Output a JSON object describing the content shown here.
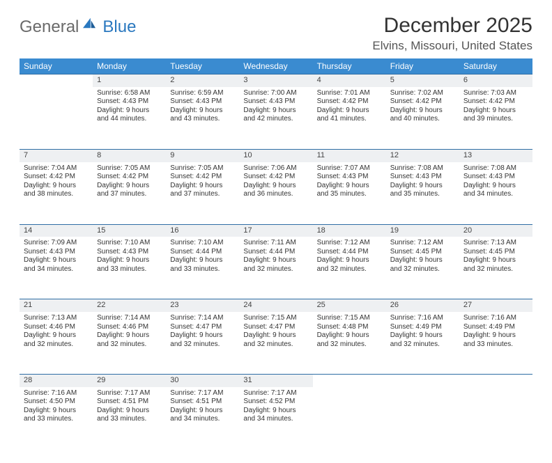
{
  "brand": {
    "general": "General",
    "blue": "Blue"
  },
  "title": "December 2025",
  "location": "Elvins, Missouri, United States",
  "colors": {
    "header_bg": "#3a8bd0",
    "header_text": "#ffffff",
    "daynum_bg": "#eef0f2",
    "rule": "#2e6da4",
    "text": "#333333",
    "brand_gray": "#6a6a6a",
    "brand_blue": "#2a78bf"
  },
  "weekdays": [
    "Sunday",
    "Monday",
    "Tuesday",
    "Wednesday",
    "Thursday",
    "Friday",
    "Saturday"
  ],
  "weeks": [
    {
      "nums": [
        "",
        "1",
        "2",
        "3",
        "4",
        "5",
        "6"
      ],
      "cells": [
        null,
        {
          "sunrise": "Sunrise: 6:58 AM",
          "sunset": "Sunset: 4:43 PM",
          "d1": "Daylight: 9 hours",
          "d2": "and 44 minutes."
        },
        {
          "sunrise": "Sunrise: 6:59 AM",
          "sunset": "Sunset: 4:43 PM",
          "d1": "Daylight: 9 hours",
          "d2": "and 43 minutes."
        },
        {
          "sunrise": "Sunrise: 7:00 AM",
          "sunset": "Sunset: 4:43 PM",
          "d1": "Daylight: 9 hours",
          "d2": "and 42 minutes."
        },
        {
          "sunrise": "Sunrise: 7:01 AM",
          "sunset": "Sunset: 4:42 PM",
          "d1": "Daylight: 9 hours",
          "d2": "and 41 minutes."
        },
        {
          "sunrise": "Sunrise: 7:02 AM",
          "sunset": "Sunset: 4:42 PM",
          "d1": "Daylight: 9 hours",
          "d2": "and 40 minutes."
        },
        {
          "sunrise": "Sunrise: 7:03 AM",
          "sunset": "Sunset: 4:42 PM",
          "d1": "Daylight: 9 hours",
          "d2": "and 39 minutes."
        }
      ]
    },
    {
      "nums": [
        "7",
        "8",
        "9",
        "10",
        "11",
        "12",
        "13"
      ],
      "cells": [
        {
          "sunrise": "Sunrise: 7:04 AM",
          "sunset": "Sunset: 4:42 PM",
          "d1": "Daylight: 9 hours",
          "d2": "and 38 minutes."
        },
        {
          "sunrise": "Sunrise: 7:05 AM",
          "sunset": "Sunset: 4:42 PM",
          "d1": "Daylight: 9 hours",
          "d2": "and 37 minutes."
        },
        {
          "sunrise": "Sunrise: 7:05 AM",
          "sunset": "Sunset: 4:42 PM",
          "d1": "Daylight: 9 hours",
          "d2": "and 37 minutes."
        },
        {
          "sunrise": "Sunrise: 7:06 AM",
          "sunset": "Sunset: 4:42 PM",
          "d1": "Daylight: 9 hours",
          "d2": "and 36 minutes."
        },
        {
          "sunrise": "Sunrise: 7:07 AM",
          "sunset": "Sunset: 4:43 PM",
          "d1": "Daylight: 9 hours",
          "d2": "and 35 minutes."
        },
        {
          "sunrise": "Sunrise: 7:08 AM",
          "sunset": "Sunset: 4:43 PM",
          "d1": "Daylight: 9 hours",
          "d2": "and 35 minutes."
        },
        {
          "sunrise": "Sunrise: 7:08 AM",
          "sunset": "Sunset: 4:43 PM",
          "d1": "Daylight: 9 hours",
          "d2": "and 34 minutes."
        }
      ]
    },
    {
      "nums": [
        "14",
        "15",
        "16",
        "17",
        "18",
        "19",
        "20"
      ],
      "cells": [
        {
          "sunrise": "Sunrise: 7:09 AM",
          "sunset": "Sunset: 4:43 PM",
          "d1": "Daylight: 9 hours",
          "d2": "and 34 minutes."
        },
        {
          "sunrise": "Sunrise: 7:10 AM",
          "sunset": "Sunset: 4:43 PM",
          "d1": "Daylight: 9 hours",
          "d2": "and 33 minutes."
        },
        {
          "sunrise": "Sunrise: 7:10 AM",
          "sunset": "Sunset: 4:44 PM",
          "d1": "Daylight: 9 hours",
          "d2": "and 33 minutes."
        },
        {
          "sunrise": "Sunrise: 7:11 AM",
          "sunset": "Sunset: 4:44 PM",
          "d1": "Daylight: 9 hours",
          "d2": "and 32 minutes."
        },
        {
          "sunrise": "Sunrise: 7:12 AM",
          "sunset": "Sunset: 4:44 PM",
          "d1": "Daylight: 9 hours",
          "d2": "and 32 minutes."
        },
        {
          "sunrise": "Sunrise: 7:12 AM",
          "sunset": "Sunset: 4:45 PM",
          "d1": "Daylight: 9 hours",
          "d2": "and 32 minutes."
        },
        {
          "sunrise": "Sunrise: 7:13 AM",
          "sunset": "Sunset: 4:45 PM",
          "d1": "Daylight: 9 hours",
          "d2": "and 32 minutes."
        }
      ]
    },
    {
      "nums": [
        "21",
        "22",
        "23",
        "24",
        "25",
        "26",
        "27"
      ],
      "cells": [
        {
          "sunrise": "Sunrise: 7:13 AM",
          "sunset": "Sunset: 4:46 PM",
          "d1": "Daylight: 9 hours",
          "d2": "and 32 minutes."
        },
        {
          "sunrise": "Sunrise: 7:14 AM",
          "sunset": "Sunset: 4:46 PM",
          "d1": "Daylight: 9 hours",
          "d2": "and 32 minutes."
        },
        {
          "sunrise": "Sunrise: 7:14 AM",
          "sunset": "Sunset: 4:47 PM",
          "d1": "Daylight: 9 hours",
          "d2": "and 32 minutes."
        },
        {
          "sunrise": "Sunrise: 7:15 AM",
          "sunset": "Sunset: 4:47 PM",
          "d1": "Daylight: 9 hours",
          "d2": "and 32 minutes."
        },
        {
          "sunrise": "Sunrise: 7:15 AM",
          "sunset": "Sunset: 4:48 PM",
          "d1": "Daylight: 9 hours",
          "d2": "and 32 minutes."
        },
        {
          "sunrise": "Sunrise: 7:16 AM",
          "sunset": "Sunset: 4:49 PM",
          "d1": "Daylight: 9 hours",
          "d2": "and 32 minutes."
        },
        {
          "sunrise": "Sunrise: 7:16 AM",
          "sunset": "Sunset: 4:49 PM",
          "d1": "Daylight: 9 hours",
          "d2": "and 33 minutes."
        }
      ]
    },
    {
      "nums": [
        "28",
        "29",
        "30",
        "31",
        "",
        "",
        ""
      ],
      "cells": [
        {
          "sunrise": "Sunrise: 7:16 AM",
          "sunset": "Sunset: 4:50 PM",
          "d1": "Daylight: 9 hours",
          "d2": "and 33 minutes."
        },
        {
          "sunrise": "Sunrise: 7:17 AM",
          "sunset": "Sunset: 4:51 PM",
          "d1": "Daylight: 9 hours",
          "d2": "and 33 minutes."
        },
        {
          "sunrise": "Sunrise: 7:17 AM",
          "sunset": "Sunset: 4:51 PM",
          "d1": "Daylight: 9 hours",
          "d2": "and 34 minutes."
        },
        {
          "sunrise": "Sunrise: 7:17 AM",
          "sunset": "Sunset: 4:52 PM",
          "d1": "Daylight: 9 hours",
          "d2": "and 34 minutes."
        },
        null,
        null,
        null
      ]
    }
  ]
}
